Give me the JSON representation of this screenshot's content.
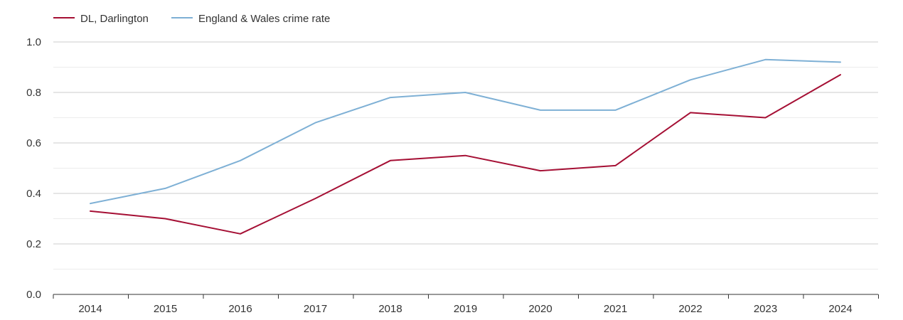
{
  "chart_data": {
    "type": "line",
    "title": "",
    "xlabel": "",
    "ylabel": "",
    "categories": [
      "2014",
      "2015",
      "2016",
      "2017",
      "2018",
      "2019",
      "2020",
      "2021",
      "2022",
      "2023",
      "2024"
    ],
    "y_ticks": [
      "0.0",
      "0.2",
      "0.4",
      "0.6",
      "0.8",
      "1.0"
    ],
    "ylim": [
      0,
      1.0
    ],
    "grid": true,
    "legend_position": "top-left",
    "series": [
      {
        "name": "DL, Darlington",
        "color": "#a50f34",
        "values": [
          0.33,
          0.3,
          0.24,
          0.38,
          0.53,
          0.55,
          0.49,
          0.51,
          0.72,
          0.7,
          0.87
        ]
      },
      {
        "name": "England & Wales crime rate",
        "color": "#7eb0d5",
        "values": [
          0.36,
          0.42,
          0.53,
          0.68,
          0.78,
          0.8,
          0.73,
          0.73,
          0.85,
          0.93,
          0.92
        ]
      }
    ]
  }
}
